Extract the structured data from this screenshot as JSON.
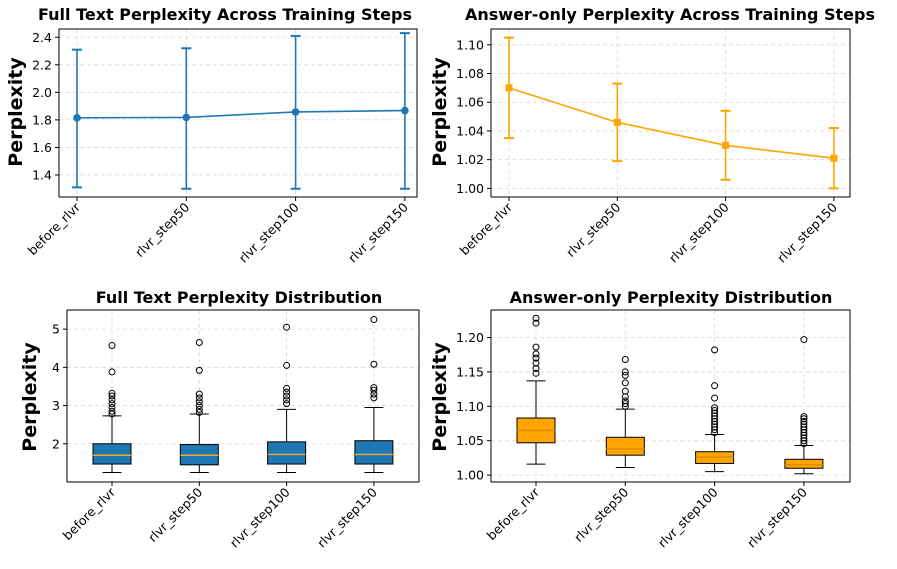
{
  "chart_data": [
    {
      "type": "line",
      "title": "Full Text Perplexity Across Training Steps",
      "ylabel": "Perplexity",
      "categories": [
        "before_rlvr",
        "rlvr_step50",
        "rlvr_step100",
        "rlvr_step150"
      ],
      "ylim": [
        1.24,
        2.46
      ],
      "yticks": [
        "1.4",
        "1.6",
        "1.8",
        "2.0",
        "2.2",
        "2.4"
      ],
      "color": "#1f77b4",
      "marker": "circle",
      "series": [
        {
          "name": "mean",
          "values": [
            1.815,
            1.818,
            1.858,
            1.868
          ],
          "err_low": [
            1.31,
            1.3,
            1.3,
            1.3
          ],
          "err_high": [
            2.31,
            2.32,
            2.41,
            2.43
          ]
        }
      ]
    },
    {
      "type": "line",
      "title": "Answer-only Perplexity Across Training Steps",
      "ylabel": "Perplexity",
      "categories": [
        "before_rlvr",
        "rlvr_step50",
        "rlvr_step100",
        "rlvr_step150"
      ],
      "ylim": [
        0.994,
        1.111
      ],
      "yticks": [
        "1.00",
        "1.02",
        "1.04",
        "1.06",
        "1.08",
        "1.10"
      ],
      "color": "#ffa500",
      "marker": "square",
      "series": [
        {
          "name": "mean",
          "values": [
            1.07,
            1.046,
            1.03,
            1.021
          ],
          "err_low": [
            1.035,
            1.019,
            1.006,
            1.0
          ],
          "err_high": [
            1.105,
            1.073,
            1.054,
            1.042
          ]
        }
      ]
    },
    {
      "type": "box",
      "title": "Full Text Perplexity Distribution",
      "ylabel": "Perplexity",
      "categories": [
        "before_rlvr",
        "rlvr_step50",
        "rlvr_step100",
        "rlvr_step150"
      ],
      "ylim": [
        1.0,
        5.5
      ],
      "yticks": [
        "2",
        "3",
        "4",
        "5"
      ],
      "color": "#1f77b4",
      "boxes": [
        {
          "whislo": 1.25,
          "q1": 1.47,
          "med": 1.7,
          "q3": 2.0,
          "whishi": 2.73,
          "fliers": [
            2.78,
            2.85,
            2.95,
            3.05,
            3.15,
            3.25,
            3.32,
            3.88,
            4.57
          ]
        },
        {
          "whislo": 1.25,
          "q1": 1.45,
          "med": 1.7,
          "q3": 1.98,
          "whishi": 2.78,
          "fliers": [
            2.82,
            2.9,
            3.0,
            3.1,
            3.2,
            3.3,
            3.92,
            4.65
          ]
        },
        {
          "whislo": 1.25,
          "q1": 1.47,
          "med": 1.72,
          "q3": 2.05,
          "whishi": 2.9,
          "fliers": [
            3.05,
            3.15,
            3.25,
            3.35,
            3.45,
            4.05,
            5.05
          ]
        },
        {
          "whislo": 1.25,
          "q1": 1.47,
          "med": 1.72,
          "q3": 2.08,
          "whishi": 2.95,
          "fliers": [
            3.2,
            3.3,
            3.4,
            3.47,
            4.08,
            5.25
          ]
        }
      ]
    },
    {
      "type": "box",
      "title": "Answer-only Perplexity Distribution",
      "ylabel": "Perplexity",
      "categories": [
        "before_rlvr",
        "rlvr_step50",
        "rlvr_step100",
        "rlvr_step150"
      ],
      "ylim": [
        0.99,
        1.24
      ],
      "yticks": [
        "1.00",
        "1.05",
        "1.10",
        "1.15",
        "1.20"
      ],
      "color": "#ffa500",
      "boxes": [
        {
          "whislo": 1.016,
          "q1": 1.047,
          "med": 1.065,
          "q3": 1.083,
          "whishi": 1.137,
          "fliers": [
            1.148,
            1.155,
            1.163,
            1.17,
            1.176,
            1.186,
            1.221,
            1.228
          ]
        },
        {
          "whislo": 1.011,
          "q1": 1.029,
          "med": 1.038,
          "q3": 1.055,
          "whishi": 1.096,
          "fliers": [
            1.1,
            1.104,
            1.108,
            1.114,
            1.122,
            1.134,
            1.145,
            1.15,
            1.168
          ]
        },
        {
          "whislo": 1.005,
          "q1": 1.017,
          "med": 1.026,
          "q3": 1.034,
          "whishi": 1.059,
          "fliers": [
            1.062,
            1.066,
            1.07,
            1.074,
            1.078,
            1.082,
            1.086,
            1.09,
            1.094,
            1.098,
            1.112,
            1.13,
            1.182
          ]
        },
        {
          "whislo": 1.002,
          "q1": 1.01,
          "med": 1.015,
          "q3": 1.023,
          "whishi": 1.043,
          "fliers": [
            1.046,
            1.05,
            1.054,
            1.058,
            1.062,
            1.066,
            1.07,
            1.074,
            1.078,
            1.082,
            1.085,
            1.197
          ]
        }
      ]
    }
  ]
}
